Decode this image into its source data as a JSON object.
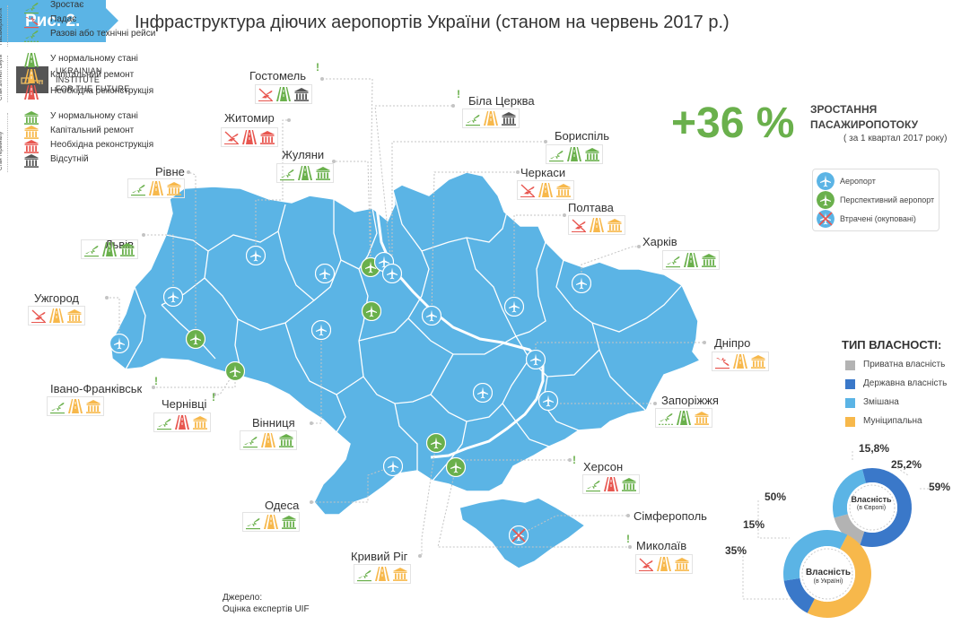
{
  "figure": {
    "tag": "Рис. 2.",
    "title": "Інфраструктура діючих аеропортів України (станом на червень 2017 р.)"
  },
  "logo": {
    "lines": [
      "Ukrainian",
      "Institute",
      "for the Future"
    ]
  },
  "growth": {
    "value": "+36 %",
    "label_line1": "ЗРОСТАННЯ",
    "label_line2": "ПАСАЖИРОПОТОКУ",
    "note": "( за 1 квартал 2017 року)"
  },
  "map_legend": {
    "airport": "Аеропорт",
    "prospective": "Перспективний аеропорт",
    "lost": "Втрачені (окуповані)"
  },
  "ownership": {
    "title": "ТИП ВЛАСНОСТІ:",
    "types": [
      {
        "label": "Приватна власність",
        "color": "#b3b3b3"
      },
      {
        "label": "Державна власність",
        "color": "#3a78c9"
      },
      {
        "label": "Змішана",
        "color": "#5bb4e5"
      },
      {
        "label": "Муніципальна",
        "color": "#f7b84b"
      }
    ],
    "europe": {
      "title": "Власність",
      "subtitle": "(в Європі)",
      "shares": [
        {
          "type": "Приватна власність",
          "value": 15.8,
          "label": "15,8%"
        },
        {
          "type": "Змішана",
          "value": 25.2,
          "label": "25,2%"
        },
        {
          "type": "Державна власність",
          "value": 59,
          "label": "59%"
        }
      ]
    },
    "ukraine": {
      "title": "Власність",
      "subtitle": "(в Україні)",
      "shares": [
        {
          "type": "Муніципальна",
          "value": 50,
          "label": "50%"
        },
        {
          "type": "Державна власність",
          "value": 15,
          "label": "15%"
        },
        {
          "type": "Змішана",
          "value": 35,
          "label": "35%"
        }
      ]
    }
  },
  "cities": [
    {
      "name": "Гостомель",
      "icons": [
        "plane-lost",
        "runway-green",
        "terminal-dark"
      ],
      "flag": "!"
    },
    {
      "name": "Біла Церква",
      "icons": [
        "plane-up",
        "runway-yellow",
        "terminal-dark"
      ],
      "flag": "!"
    },
    {
      "name": "Житомир",
      "icons": [
        "plane-lost",
        "runway-red",
        "terminal-red"
      ]
    },
    {
      "name": "Бориспіль",
      "icons": [
        "plane-up",
        "runway-green",
        "terminal-green"
      ]
    },
    {
      "name": "Жуляни",
      "icons": [
        "plane-up",
        "runway-green",
        "terminal-green"
      ]
    },
    {
      "name": "Черкаси",
      "icons": [
        "plane-lost",
        "runway-yellow",
        "terminal-yellow"
      ]
    },
    {
      "name": "Рівне",
      "icons": [
        "plane-up",
        "runway-yellow",
        "terminal-yellow"
      ]
    },
    {
      "name": "Полтава",
      "icons": [
        "plane-lost",
        "runway-yellow",
        "terminal-yellow"
      ]
    },
    {
      "name": "Львів",
      "icons": [
        "plane-up",
        "runway-green",
        "terminal-green"
      ]
    },
    {
      "name": "Харків",
      "icons": [
        "plane-up",
        "runway-green",
        "terminal-green"
      ]
    },
    {
      "name": "Ужгород",
      "icons": [
        "plane-lost",
        "runway-yellow",
        "terminal-yellow"
      ]
    },
    {
      "name": "Дніпро",
      "icons": [
        "plane-down",
        "runway-yellow",
        "terminal-yellow"
      ]
    },
    {
      "name": "Івано-Франківськ",
      "icons": [
        "plane-up",
        "runway-yellow",
        "terminal-yellow"
      ],
      "flag": "!"
    },
    {
      "name": "Чернівці",
      "icons": [
        "plane-up",
        "runway-red",
        "terminal-yellow"
      ],
      "flag": "!"
    },
    {
      "name": "Запоріжжя",
      "icons": [
        "plane-once",
        "runway-green",
        "terminal-yellow"
      ]
    },
    {
      "name": "Вінниця",
      "icons": [
        "plane-up",
        "runway-yellow",
        "terminal-green"
      ]
    },
    {
      "name": "Херсон",
      "icons": [
        "plane-up",
        "runway-red",
        "terminal-green"
      ],
      "flag": "!"
    },
    {
      "name": "Одеса",
      "icons": [
        "plane-up",
        "runway-yellow",
        "terminal-green"
      ]
    },
    {
      "name": "Сімферополь",
      "icons": []
    },
    {
      "name": "Кривий Ріг",
      "icons": [
        "plane-up",
        "runway-yellow",
        "terminal-yellow"
      ]
    },
    {
      "name": "Миколаїв",
      "icons": [
        "plane-lost",
        "runway-yellow",
        "terminal-yellow"
      ],
      "flag": "!"
    }
  ],
  "side_legend": {
    "passenger_flow": {
      "group": "Пасажиропотік",
      "items": [
        "Зростає",
        "Падає",
        "Разові або технічні рейси"
      ]
    },
    "runway": {
      "group": "Стан злітної смуги",
      "items": [
        "У нормальному стані",
        "Капітальний ремонт",
        "Необхідна реконструкція"
      ]
    },
    "terminal": {
      "group": "Стан терміналу",
      "items": [
        "У нормальному стані",
        "Капітальний ремонт",
        "Необхідна реконструкція",
        "Відсутній"
      ]
    }
  },
  "source": {
    "line1": "Джерело:",
    "line2": "Оцінка експертів UIF"
  },
  "colors": {
    "map": "#5bb4e5",
    "green": "#6ab04c",
    "yellow": "#f7b84b",
    "red": "#e8564f",
    "dark": "#555555",
    "private": "#b3b3b3",
    "state": "#3a78c9",
    "mixed": "#5bb4e5",
    "municipal": "#f7b84b"
  }
}
